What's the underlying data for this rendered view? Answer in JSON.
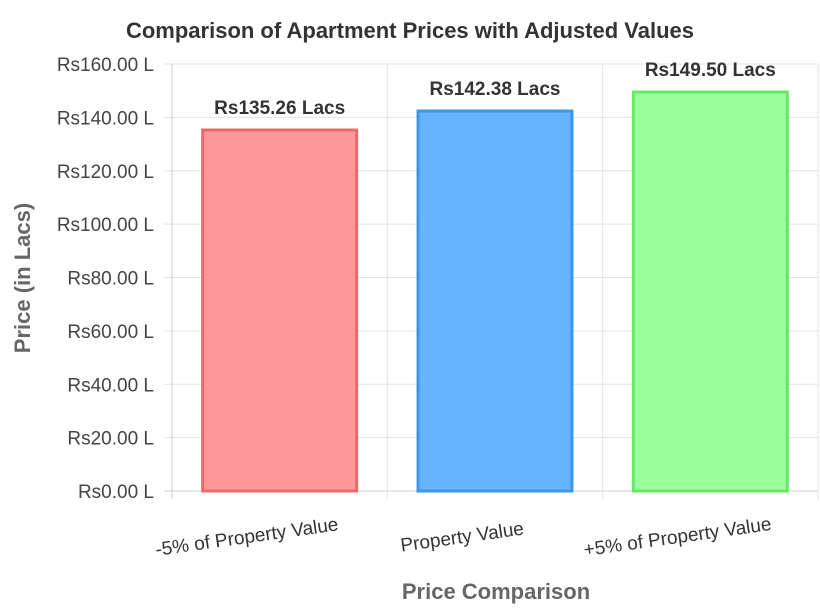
{
  "chart_data": {
    "type": "bar",
    "title": "Comparison of Apartment Prices with Adjusted Values",
    "xlabel": "Price Comparison",
    "ylabel": "Price (in Lacs)",
    "categories": [
      "-5% of Property Value",
      "Property Value",
      "+5% of Property Value"
    ],
    "values": [
      135.26,
      142.38,
      149.5
    ],
    "data_labels": [
      "Rs135.26 Lacs",
      "Rs142.38 Lacs",
      "Rs149.50 Lacs"
    ],
    "ylim": [
      0,
      160
    ],
    "yticks": [
      0,
      20,
      40,
      60,
      80,
      100,
      120,
      140,
      160
    ],
    "ytick_labels": [
      "Rs0.00 L",
      "Rs20.00 L",
      "Rs40.00 L",
      "Rs60.00 L",
      "Rs80.00 L",
      "Rs100.00 L",
      "Rs120.00 L",
      "Rs140.00 L",
      "Rs160.00 L"
    ],
    "bar_fill_colors": [
      "#ff9999",
      "#66b3ff",
      "#99ff99"
    ],
    "bar_border_colors": [
      "#e86a6a",
      "#3d97e8",
      "#66e866"
    ],
    "grid": true,
    "legend": "none"
  }
}
